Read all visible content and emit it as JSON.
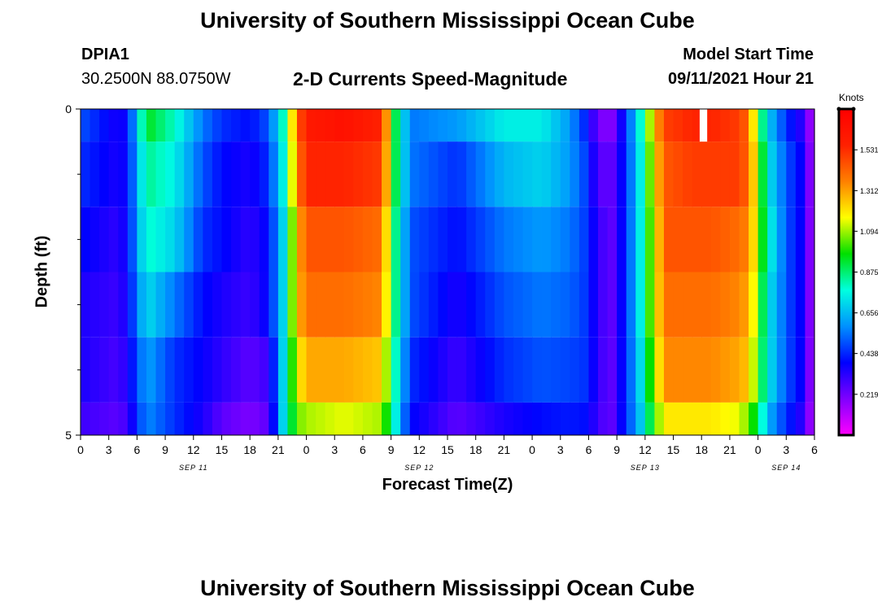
{
  "header": {
    "title": "University of Southern Mississippi Ocean Cube",
    "station": "DPIA1",
    "coords": "30.2500N  88.0750W",
    "subtitle": "2-D Currents Speed-Magnitude",
    "model_start_label": "Model Start Time",
    "model_start_value": "09/11/2021 Hour 21"
  },
  "footer": {
    "title": "University of Southern Mississippi Ocean Cube"
  },
  "colors": {
    "missing": "#ffffff",
    "frame": "#000000"
  },
  "chart_data": {
    "type": "heatmap",
    "title": "2-D Currents Speed-Magnitude",
    "xlabel": "Forecast Time(Z)",
    "ylabel": "Depth (ft)",
    "units": "Knots",
    "x_tick_labels": [
      "0",
      "3",
      "6",
      "9",
      "12",
      "15",
      "18",
      "21",
      "0",
      "3",
      "6",
      "9",
      "12",
      "15",
      "18",
      "21",
      "0",
      "3",
      "6",
      "9",
      "12",
      "15",
      "18",
      "21",
      "0",
      "3",
      "6"
    ],
    "date_labels": [
      {
        "label": "SEP 11",
        "hour": 12
      },
      {
        "label": "SEP 12",
        "hour": 36
      },
      {
        "label": "SEP 13",
        "hour": 60
      },
      {
        "label": "SEP 14",
        "hour": 75
      }
    ],
    "x_range_hours": [
      0,
      78
    ],
    "y_range_ft": [
      0,
      5
    ],
    "y_tick_labels": [
      "0",
      "5"
    ],
    "y_minor_ticks": [
      1,
      2,
      3,
      4
    ],
    "colorbar": {
      "min": 0,
      "max": 1.75,
      "ticks": [
        0.219,
        0.438,
        0.656,
        0.875,
        1.094,
        1.312,
        1.531
      ],
      "tick_labels": [
        "0.219",
        "0.438",
        "0.656",
        "0.875",
        "1.094",
        "1.312",
        "1.531"
      ],
      "stops": [
        "#ff00ff",
        "#8000ff",
        "#0000ff",
        "#0090ff",
        "#00ffe0",
        "#00e000",
        "#ffff00",
        "#ff8000",
        "#ff2000",
        "#ff0000"
      ]
    },
    "layers_ft": [
      [
        0,
        0.5
      ],
      [
        0.5,
        1.5
      ],
      [
        1.5,
        2.5
      ],
      [
        2.5,
        3.5
      ],
      [
        3.5,
        4.5
      ],
      [
        4.5,
        5
      ]
    ],
    "key_times_hours": [
      0,
      4,
      5,
      7,
      10,
      13,
      15,
      18,
      20,
      21.5,
      23,
      24,
      28,
      32,
      33.5,
      35,
      40,
      45,
      49,
      52,
      54,
      55,
      56.5,
      58,
      60,
      61,
      62.5,
      65,
      67,
      70,
      71,
      72,
      73,
      75,
      77,
      78
    ],
    "speed_knots": [
      [
        0.5,
        0.35,
        0.4,
        0.95,
        0.8,
        0.55,
        0.45,
        0.4,
        0.5,
        0.8,
        1.4,
        1.6,
        1.65,
        1.55,
        0.9,
        0.55,
        0.6,
        0.75,
        0.75,
        0.6,
        0.4,
        0.2,
        0.2,
        0.45,
        0.9,
        1.3,
        1.5,
        1.55,
        1.55,
        1.5,
        1.4,
        1.0,
        0.7,
        0.45,
        0.3,
        0.05
      ],
      [
        0.45,
        0.35,
        0.4,
        0.85,
        0.75,
        0.5,
        0.4,
        0.35,
        0.45,
        0.75,
        1.35,
        1.55,
        1.55,
        1.5,
        0.9,
        0.55,
        0.45,
        0.65,
        0.7,
        0.6,
        0.45,
        0.25,
        0.25,
        0.45,
        0.85,
        1.25,
        1.45,
        1.5,
        1.5,
        1.5,
        1.4,
        1.1,
        0.75,
        0.5,
        0.35,
        0.05
      ],
      [
        0.4,
        0.32,
        0.4,
        0.8,
        0.7,
        0.45,
        0.4,
        0.32,
        0.4,
        0.7,
        1.25,
        1.45,
        1.45,
        1.4,
        0.85,
        0.5,
        0.4,
        0.55,
        0.6,
        0.55,
        0.45,
        0.3,
        0.25,
        0.45,
        0.85,
        1.2,
        1.45,
        1.45,
        1.45,
        1.4,
        1.35,
        1.1,
        0.8,
        0.5,
        0.35,
        0.05
      ],
      [
        0.35,
        0.3,
        0.38,
        0.72,
        0.55,
        0.4,
        0.35,
        0.3,
        0.4,
        0.7,
        1.25,
        1.4,
        1.4,
        1.35,
        0.85,
        0.5,
        0.35,
        0.5,
        0.55,
        0.52,
        0.45,
        0.3,
        0.25,
        0.45,
        0.85,
        1.2,
        1.4,
        1.4,
        1.4,
        1.35,
        1.3,
        1.05,
        0.75,
        0.5,
        0.35,
        0.05
      ],
      [
        0.35,
        0.28,
        0.35,
        0.62,
        0.45,
        0.38,
        0.32,
        0.25,
        0.3,
        0.7,
        1.15,
        1.3,
        1.3,
        1.25,
        0.8,
        0.45,
        0.3,
        0.45,
        0.5,
        0.48,
        0.45,
        0.3,
        0.25,
        0.45,
        0.8,
        1.15,
        1.35,
        1.35,
        1.35,
        1.3,
        1.25,
        1.0,
        0.75,
        0.5,
        0.35,
        0.05
      ],
      [
        0.3,
        0.25,
        0.3,
        0.58,
        0.45,
        0.35,
        0.25,
        0.2,
        0.25,
        0.7,
        1.05,
        1.1,
        1.15,
        1.1,
        0.75,
        0.4,
        0.25,
        0.35,
        0.4,
        0.42,
        0.4,
        0.28,
        0.25,
        0.45,
        0.75,
        1.05,
        1.2,
        1.2,
        1.2,
        1.15,
        1.05,
        0.9,
        0.65,
        0.45,
        0.3,
        0.05
      ]
    ],
    "missing_bars": [
      {
        "layer": 0,
        "start_hour": 65.8,
        "end_hour": 66.6
      }
    ]
  }
}
